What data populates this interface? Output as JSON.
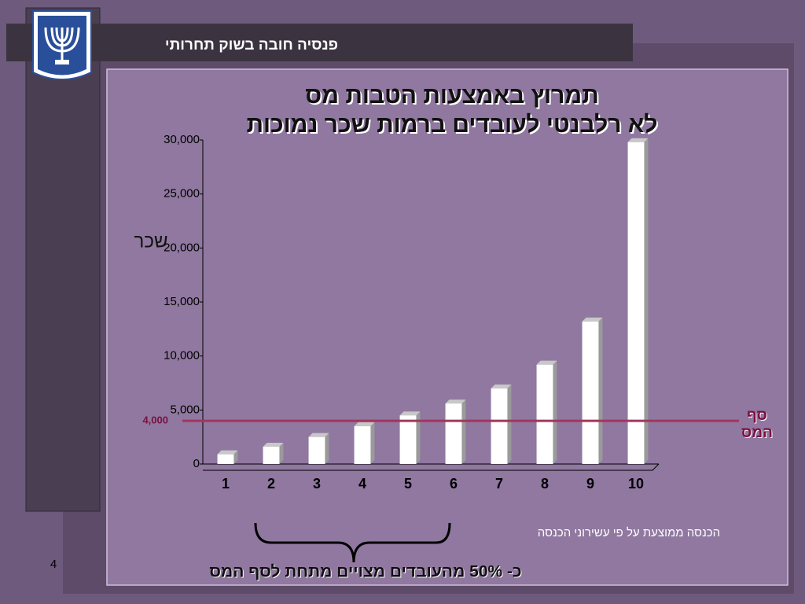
{
  "slide": {
    "header": "פנסיה חובה בשוק תחרותי",
    "page_number": "4"
  },
  "chart_data": {
    "type": "bar",
    "title": [
      "תמרוץ באמצעות הטבות מס",
      "לא רלבנטי לעובדים ברמות שכר נמוכות"
    ],
    "y_label": "שכר",
    "x_label": "הכנסה ממוצעת על פי עשירוני הכנסה",
    "categories": [
      "1",
      "2",
      "3",
      "4",
      "5",
      "6",
      "7",
      "8",
      "9",
      "10"
    ],
    "values": [
      900,
      1600,
      2500,
      3500,
      4500,
      5600,
      7000,
      9200,
      13200,
      29800
    ],
    "color": "#ffffff",
    "ylim": [
      0,
      30000
    ],
    "yticks": [
      0,
      {
        "value": 5000,
        "label": "5,000"
      },
      {
        "value": 10000,
        "label": "10,000"
      },
      {
        "value": 15000,
        "label": "15,000"
      },
      {
        "value": 20000,
        "label": "20,000"
      },
      {
        "value": 25000,
        "label": "25,000"
      },
      {
        "value": 30000,
        "label": "30,000"
      }
    ],
    "threshold": {
      "value": 4000,
      "label": "4,000",
      "name": [
        "סף",
        "המס"
      ],
      "color": "#a3365e"
    },
    "annotation": "כ- 50% מהעובדים מצויים מתחת לסף המס"
  }
}
